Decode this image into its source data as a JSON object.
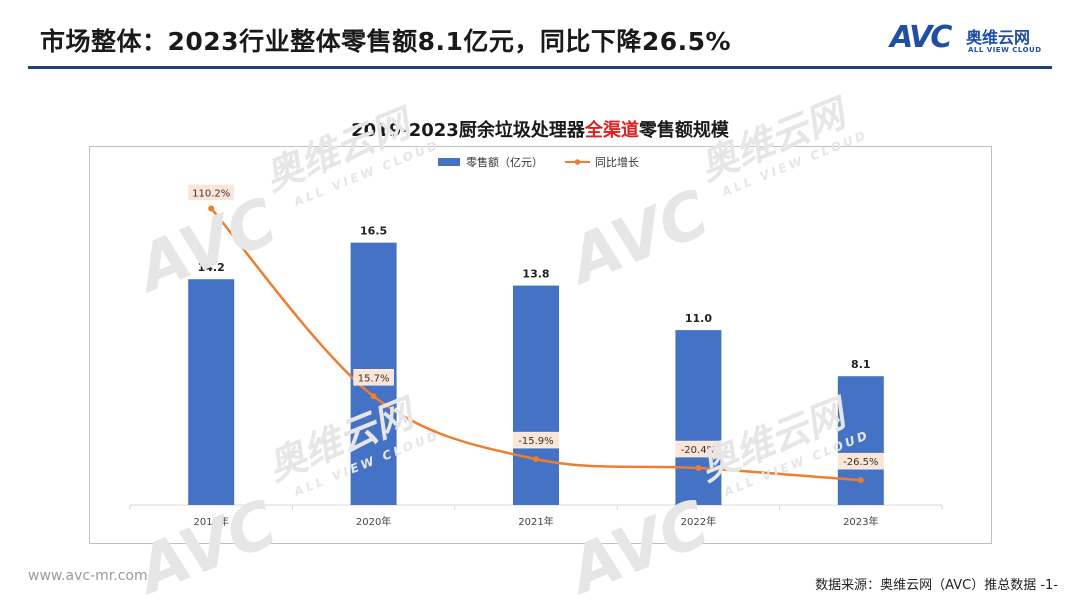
{
  "header": {
    "title": "市场整体：2023行业整体零售额8.1亿元，同比下降26.5%"
  },
  "brand": {
    "mark": "AVC",
    "name_cn": "奥维云网",
    "name_en": "ALL VIEW CLOUD"
  },
  "watermark": {
    "mark": "AVC",
    "name_cn": "奥维云网",
    "name_en": "ALL VIEW CLOUD"
  },
  "footer": {
    "url": "www.avc-mr.com",
    "source": "数据来源：奥维云网（AVC）推总数据 -1-"
  },
  "colors": {
    "bar": "#4472c4",
    "line": "#ed7d31",
    "title_highlight": "#e02020",
    "header_rule": "#1f3e78"
  },
  "chart_data": {
    "type": "bar",
    "title_parts": [
      "2019-2023厨余垃圾处理器",
      "全渠道",
      "零售额规模"
    ],
    "categories": [
      "2019年",
      "2020年",
      "2021年",
      "2022年",
      "2023年"
    ],
    "series": [
      {
        "name": "零售额（亿元）",
        "type": "bar",
        "values": [
          14.2,
          16.5,
          13.8,
          11.0,
          8.1
        ],
        "labels": [
          "14.2",
          "16.5",
          "13.8",
          "11.0",
          "8.1"
        ]
      },
      {
        "name": "同比增长",
        "type": "line",
        "smooth": true,
        "values": [
          110.2,
          15.7,
          -15.9,
          -20.4,
          -26.5
        ],
        "labels": [
          "110.2%",
          "15.7%",
          "-15.9%",
          "-20.4%",
          "-26.5%"
        ]
      }
    ],
    "legend_position": "top",
    "grid": false
  }
}
